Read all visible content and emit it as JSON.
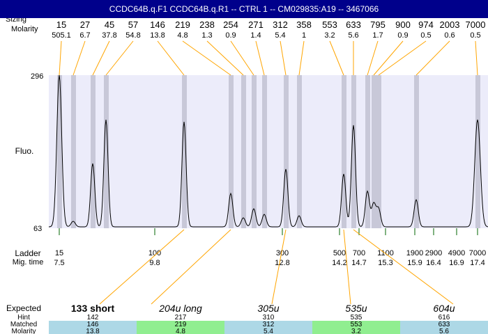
{
  "title": "CCDC64B.q.F1  CCDC64B.q.R1 -- CTRL 1 -- CM029835:A19 -- 3467066",
  "labels": {
    "sizing": "Sizing",
    "molarity": "Molarity",
    "fluo": "Fluo.",
    "ladder": "Ladder",
    "mig_time": "Mig. time",
    "expected": "Expected",
    "hint": "Hint",
    "matched": "Matched",
    "molarity2": "Molarity"
  },
  "colors": {
    "header": "#00008b",
    "plot_bg": "#ececfa",
    "band": "#c8c8d8",
    "leader": "#ffa500",
    "ladder_tick": "#006400",
    "matched_a": "#add8e6",
    "matched_b": "#90ee90"
  },
  "chart_data": {
    "type": "line",
    "ylabel": "Fluo.",
    "y_ticks": [
      "296",
      "63"
    ],
    "peaks": [
      {
        "size": "15",
        "molarity": "505.1"
      },
      {
        "size": "27",
        "molarity": "6.7"
      },
      {
        "size": "45",
        "molarity": "37.8"
      },
      {
        "size": "57",
        "molarity": "54.8"
      },
      {
        "size": "146",
        "molarity": "13.8"
      },
      {
        "size": "219",
        "molarity": "4.8"
      },
      {
        "size": "238",
        "molarity": "1.3"
      },
      {
        "size": "254",
        "molarity": "0.9"
      },
      {
        "size": "271",
        "molarity": "1.4"
      },
      {
        "size": "312",
        "molarity": "5.4"
      },
      {
        "size": "358",
        "molarity": "1"
      },
      {
        "size": "553",
        "molarity": "3.2"
      },
      {
        "size": "633",
        "molarity": "5.6"
      },
      {
        "size": "795",
        "molarity": "1.7"
      },
      {
        "size": "900",
        "molarity": "0.9"
      },
      {
        "size": "974",
        "molarity": "0.5"
      },
      {
        "size": "2003",
        "molarity": "0.6"
      },
      {
        "size": "7000",
        "molarity": "0.5"
      }
    ],
    "ladder": [
      {
        "size": "15",
        "time": "7.5"
      },
      {
        "size": "100",
        "time": "9.8"
      },
      {
        "size": "300",
        "time": "12.8"
      },
      {
        "size": "500",
        "time": "14.2"
      },
      {
        "size": "700",
        "time": "14.7"
      },
      {
        "size": "1100",
        "time": "15.3"
      },
      {
        "size": "1900",
        "time": "15.9"
      },
      {
        "size": "2900",
        "time": "16.4"
      },
      {
        "size": "4900",
        "time": "16.9"
      },
      {
        "size": "7000",
        "time": "17.4"
      }
    ],
    "expected": [
      {
        "label": "133 short",
        "hint": "142",
        "matched": "146",
        "molarity": "13.8"
      },
      {
        "label": "204u long",
        "hint": "217",
        "matched": "219",
        "molarity": "4.8"
      },
      {
        "label": "305u",
        "hint": "310",
        "matched": "312",
        "molarity": "5.4"
      },
      {
        "label": "535u",
        "hint": "535",
        "matched": "553",
        "molarity": "3.2"
      },
      {
        "label": "604u",
        "hint": "616",
        "matched": "633",
        "molarity": "5.6"
      }
    ]
  }
}
